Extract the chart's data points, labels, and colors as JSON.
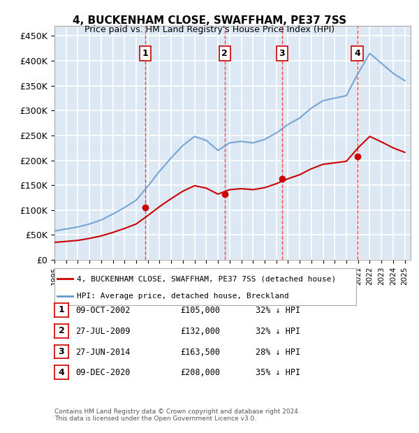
{
  "title": "4, BUCKENHAM CLOSE, SWAFFHAM, PE37 7SS",
  "subtitle": "Price paid vs. HM Land Registry's House Price Index (HPI)",
  "ylabel_ticks": [
    "£0",
    "£50K",
    "£100K",
    "£150K",
    "£200K",
    "£250K",
    "£300K",
    "£350K",
    "£400K",
    "£450K"
  ],
  "ytick_values": [
    0,
    50000,
    100000,
    150000,
    200000,
    250000,
    300000,
    350000,
    400000,
    450000
  ],
  "ylim": [
    0,
    470000
  ],
  "xlim_start": 1995.0,
  "xlim_end": 2025.5,
  "background_color": "#dce9f5",
  "plot_bg_color": "#dce9f5",
  "grid_color": "#ffffff",
  "red_line_color": "#cc0000",
  "blue_line_color": "#6699cc",
  "sale_dates": [
    2002.77,
    2009.57,
    2014.49,
    2020.93
  ],
  "sale_prices": [
    105000,
    132000,
    163500,
    208000
  ],
  "sale_labels": [
    "1",
    "2",
    "3",
    "4"
  ],
  "vline_color": "#ff4444",
  "marker_color": "#cc0000",
  "legend_entries": [
    "4, BUCKENHAM CLOSE, SWAFFHAM, PE37 7SS (detached house)",
    "HPI: Average price, detached house, Breckland"
  ],
  "table_data": [
    [
      "1",
      "09-OCT-2002",
      "£105,000",
      "32% ↓ HPI"
    ],
    [
      "2",
      "27-JUL-2009",
      "£132,000",
      "32% ↓ HPI"
    ],
    [
      "3",
      "27-JUN-2014",
      "£163,500",
      "28% ↓ HPI"
    ],
    [
      "4",
      "09-DEC-2020",
      "£208,000",
      "35% ↓ HPI"
    ]
  ],
  "footer": "Contains HM Land Registry data © Crown copyright and database right 2024.\nThis data is licensed under the Open Government Licence v3.0.",
  "hpi_years": [
    1995,
    1996,
    1997,
    1998,
    1999,
    2000,
    2001,
    2002,
    2003,
    2004,
    2005,
    2006,
    2007,
    2008,
    2009,
    2010,
    2011,
    2012,
    2013,
    2014,
    2015,
    2016,
    2017,
    2018,
    2019,
    2020,
    2021,
    2022,
    2023,
    2024,
    2025
  ],
  "hpi_values": [
    58000,
    62000,
    66000,
    72000,
    80000,
    92000,
    105000,
    120000,
    148000,
    178000,
    205000,
    230000,
    248000,
    240000,
    220000,
    235000,
    238000,
    235000,
    242000,
    255000,
    272000,
    285000,
    305000,
    320000,
    325000,
    330000,
    375000,
    415000,
    395000,
    375000,
    360000
  ],
  "red_years": [
    1995,
    1996,
    1997,
    1998,
    1999,
    2000,
    2001,
    2002,
    2003,
    2004,
    2005,
    2006,
    2007,
    2008,
    2009,
    2010,
    2011,
    2012,
    2013,
    2014,
    2015,
    2016,
    2017,
    2018,
    2019,
    2020,
    2021,
    2022,
    2023,
    2024,
    2025
  ],
  "red_values": [
    35000,
    37000,
    39000,
    43000,
    48000,
    55000,
    63000,
    72000,
    89000,
    107000,
    123000,
    138000,
    149000,
    144000,
    132000,
    141000,
    143000,
    141000,
    145000,
    153000,
    163000,
    171000,
    183000,
    192000,
    195000,
    198000,
    225000,
    248000,
    237000,
    225000,
    216000
  ]
}
